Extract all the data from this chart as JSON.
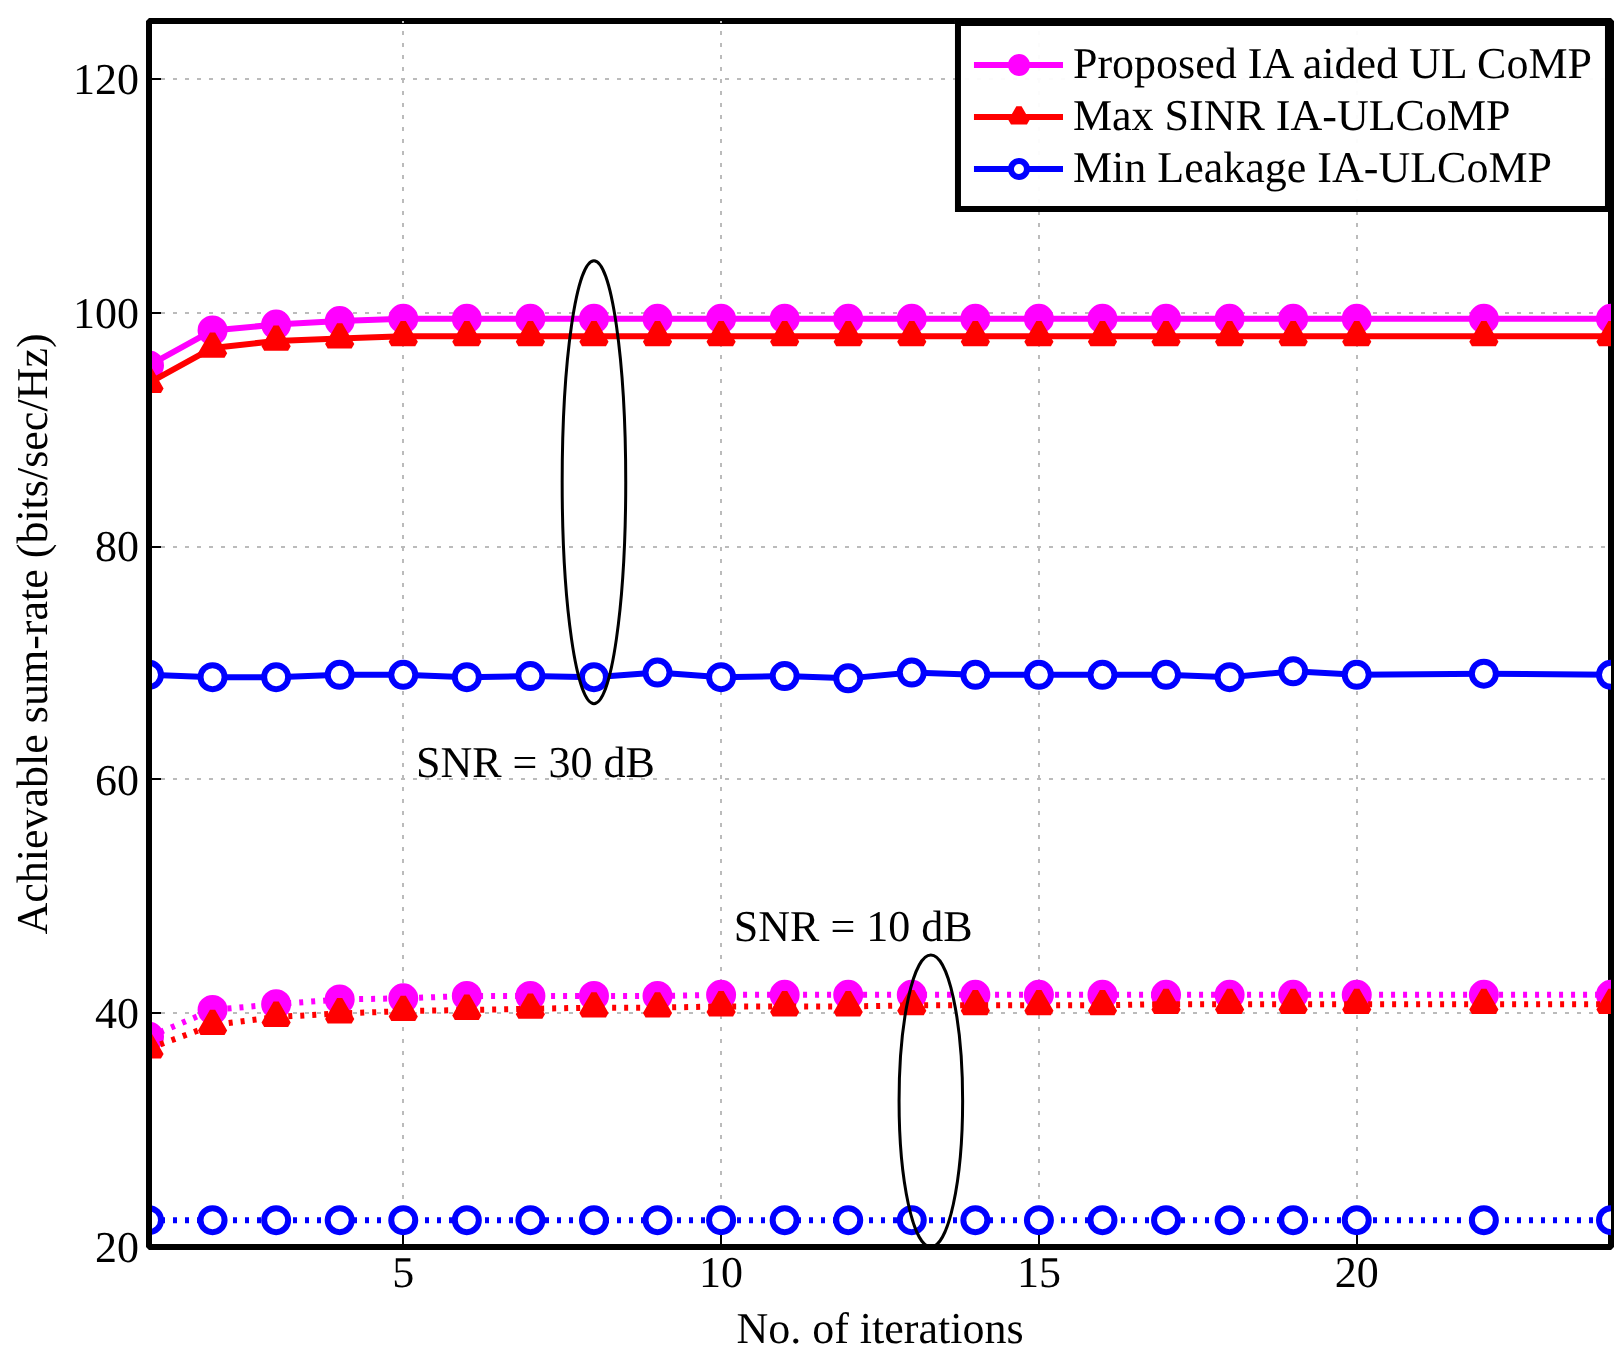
{
  "chart_data": {
    "type": "line",
    "xlabel": "No. of iterations",
    "ylabel": "Achievable sum-rate (bits/sec/Hz)",
    "x": [
      1,
      2,
      3,
      4,
      5,
      6,
      7,
      8,
      9,
      10,
      11,
      12,
      13,
      14,
      15,
      16,
      17,
      18,
      19,
      20,
      22,
      24
    ],
    "xlim": [
      1,
      24
    ],
    "xticks": [
      5,
      10,
      15,
      20
    ],
    "ylim": [
      20,
      125
    ],
    "yticks": [
      20,
      40,
      60,
      80,
      100,
      120
    ],
    "grid": true,
    "legend": "top right",
    "series": [
      {
        "name": "Proposed IA aided UL CoMP",
        "color": "#ff00ff",
        "marker": "circle",
        "line_style": "solid",
        "values": [
          95.5,
          98.5,
          99,
          99.3,
          99.5,
          99.5,
          99.5,
          99.5,
          99.5,
          99.5,
          99.5,
          99.5,
          99.5,
          99.5,
          99.5,
          99.5,
          99.5,
          99.5,
          99.5,
          99.5,
          99.5,
          99.5
        ]
      },
      {
        "name": "Max SINR IA-ULCoMP",
        "color": "#ff0000",
        "marker": "triangle",
        "line_style": "solid",
        "values": [
          94,
          97,
          97.6,
          97.8,
          98,
          98,
          98,
          98,
          98,
          98,
          98,
          98,
          98,
          98,
          98,
          98,
          98,
          98,
          98,
          98,
          98,
          98
        ]
      },
      {
        "name": "Min Leakage IA-ULCoMP",
        "color": "#0000ff",
        "marker": "circle",
        "line_style": "solid",
        "values": [
          69,
          68.8,
          68.8,
          69,
          69,
          68.8,
          68.9,
          68.8,
          69.2,
          68.8,
          68.9,
          68.7,
          69.2,
          69,
          69,
          69,
          69,
          68.8,
          69.3,
          69,
          69.1,
          69
        ]
      },
      {
        "color": "#ff00ff",
        "marker": "circle",
        "line_style": "dotted",
        "values": [
          38,
          40.3,
          40.8,
          41.2,
          41.3,
          41.5,
          41.5,
          41.5,
          41.5,
          41.6,
          41.6,
          41.6,
          41.6,
          41.6,
          41.6,
          41.6,
          41.6,
          41.6,
          41.6,
          41.6,
          41.6,
          41.6
        ]
      },
      {
        "color": "#ff0000",
        "marker": "triangle",
        "line_style": "dotted",
        "values": [
          37,
          39,
          39.7,
          40,
          40.2,
          40.3,
          40.4,
          40.5,
          40.5,
          40.6,
          40.6,
          40.6,
          40.7,
          40.7,
          40.7,
          40.7,
          40.8,
          40.8,
          40.8,
          40.8,
          40.8,
          40.8
        ]
      },
      {
        "color": "#0000ff",
        "marker": "circle",
        "line_style": "dotted",
        "values": [
          22.3,
          22.3,
          22.3,
          22.3,
          22.3,
          22.3,
          22.3,
          22.3,
          22.3,
          22.3,
          22.3,
          22.3,
          22.3,
          22.3,
          22.3,
          22.3,
          22.3,
          22.3,
          22.3,
          22.3,
          22.3,
          22.3
        ]
      }
    ],
    "annotations": [
      "SNR = 30 dB",
      "SNR = 10 dB"
    ]
  }
}
